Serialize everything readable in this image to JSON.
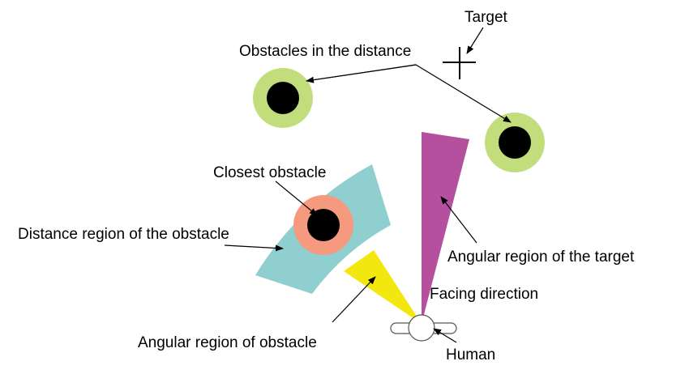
{
  "labels": {
    "target": "Target",
    "obstacles_in_distance": "Obstacles in the distance",
    "closest_obstacle": "Closest obstacle",
    "distance_region": "Distance region of the obstacle",
    "angular_region_target": "Angular region of the target",
    "facing_direction": "Facing direction",
    "angular_region_obstacle": "Angular region of obstacle",
    "human": "Human"
  },
  "colors": {
    "obstacle_ring": "#c2de7c",
    "obstacle_core": "#000000",
    "closest_ring": "#f59a7e",
    "distance_region": "#8fcfcf",
    "target_region": "#b5509f",
    "obstacle_angle_region": "#f2e80f",
    "human_fill": "#ffffff",
    "line": "#000000"
  },
  "icons": {
    "target_marker": "crosshair",
    "human_marker": "top-down-person"
  }
}
